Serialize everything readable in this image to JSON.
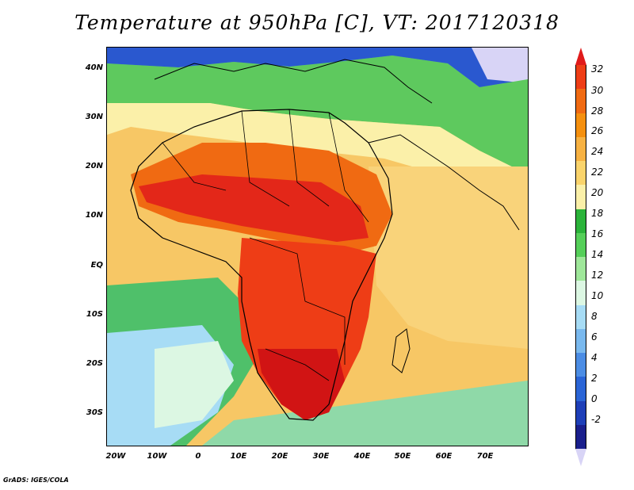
{
  "title": "Temperature at 950hPa [C], VT: 2017120318",
  "footer": "GrADS: IGES/COLA",
  "axes": {
    "y_labels": [
      "40N",
      "30N",
      "20N",
      "10N",
      "EQ",
      "10S",
      "20S",
      "30S"
    ],
    "x_labels": [
      "20W",
      "10W",
      "0",
      "10E",
      "20E",
      "30E",
      "40E",
      "50E",
      "60E",
      "70E"
    ]
  },
  "colorbar": {
    "labels": [
      "32",
      "30",
      "28",
      "26",
      "24",
      "22",
      "20",
      "18",
      "16",
      "14",
      "12",
      "10",
      "8",
      "6",
      "4",
      "2",
      "0",
      "-2"
    ],
    "colors": [
      "#e01b1b",
      "#ee3d16",
      "#f06a12",
      "#f5900f",
      "#f7b243",
      "#fad46c",
      "#fbf0a9",
      "#2bb33a",
      "#55cf59",
      "#9fe79a",
      "#dcf7e3",
      "#a7dcf5",
      "#7ab9ee",
      "#4c8de4",
      "#2b65d6",
      "#1e3fb8",
      "#1a1f8c",
      "#d8d4f6"
    ]
  }
}
